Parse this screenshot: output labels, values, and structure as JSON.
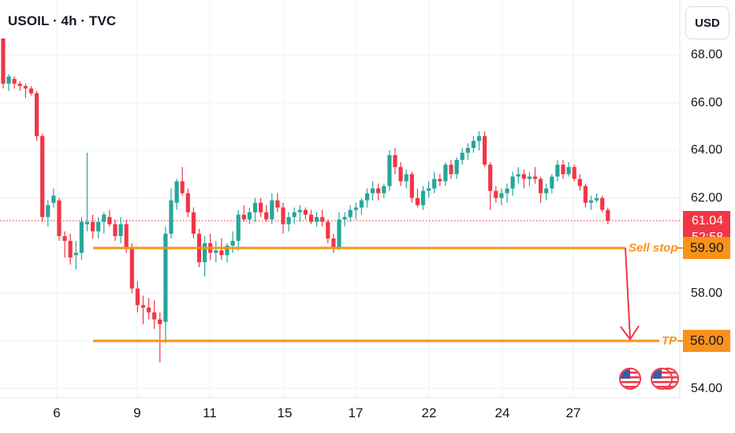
{
  "header": {
    "title": "USOIL · 4h · TVC",
    "currency": "USD"
  },
  "price_tag": {
    "price": "61.04",
    "countdown": "52:58"
  },
  "levels": [
    {
      "name": "Sell stop",
      "value": 59.9,
      "label": "59.90"
    },
    {
      "name": "TP",
      "value": 56.0,
      "label": "56.00"
    }
  ],
  "colors": {
    "up": "#26a69a",
    "down": "#f23645",
    "level": "#f7931a",
    "grid": "#eef0f3"
  },
  "icons": [
    "us-flag-icon",
    "us-flag-stack-icon"
  ],
  "chart_data": {
    "type": "candlestick",
    "title": "USOIL · 4h · TVC",
    "y_ticks": [
      "54.00",
      "56.00",
      "58.00",
      "62.00",
      "64.00",
      "66.00",
      "68.00"
    ],
    "x_ticks": [
      "6",
      "9",
      "11",
      "15",
      "17",
      "22",
      "24",
      "27"
    ],
    "ylim": [
      53.5,
      69.5
    ],
    "last_price": 61.04,
    "candles": [
      [
        68.7,
        68.7,
        66.6,
        66.8
      ],
      [
        66.8,
        67.2,
        66.5,
        67.1
      ],
      [
        67.0,
        67.1,
        66.6,
        66.8
      ],
      [
        66.8,
        66.9,
        66.5,
        66.7
      ],
      [
        66.7,
        66.8,
        66.2,
        66.6
      ],
      [
        66.6,
        66.7,
        66.3,
        66.4
      ],
      [
        66.4,
        66.5,
        64.4,
        64.6
      ],
      [
        64.6,
        64.7,
        61.0,
        61.2
      ],
      [
        61.2,
        61.9,
        60.8,
        61.7
      ],
      [
        61.8,
        62.4,
        61.6,
        62.1
      ],
      [
        61.9,
        62.0,
        60.2,
        60.4
      ],
      [
        60.4,
        60.6,
        59.5,
        60.2
      ],
      [
        60.2,
        60.5,
        59.2,
        59.5
      ],
      [
        59.6,
        60.2,
        59.0,
        59.7
      ],
      [
        59.7,
        61.2,
        59.4,
        61.0
      ],
      [
        60.9,
        63.9,
        60.6,
        61.0
      ],
      [
        61.0,
        61.3,
        60.3,
        60.6
      ],
      [
        60.6,
        61.2,
        60.3,
        61.0
      ],
      [
        61.0,
        61.4,
        60.5,
        61.3
      ],
      [
        61.2,
        61.5,
        60.8,
        60.9
      ],
      [
        60.9,
        61.1,
        60.2,
        60.4
      ],
      [
        60.4,
        61.2,
        60.1,
        60.9
      ],
      [
        60.9,
        61.1,
        59.7,
        59.9
      ],
      [
        59.9,
        60.1,
        58.0,
        58.2
      ],
      [
        58.2,
        58.5,
        57.2,
        57.5
      ],
      [
        57.5,
        57.9,
        56.7,
        57.4
      ],
      [
        57.4,
        57.8,
        56.9,
        57.2
      ],
      [
        57.2,
        57.7,
        56.5,
        56.9
      ],
      [
        56.9,
        57.2,
        55.1,
        56.7
      ],
      [
        56.8,
        60.8,
        55.9,
        60.5
      ],
      [
        60.5,
        62.4,
        60.3,
        61.9
      ],
      [
        61.8,
        62.8,
        61.5,
        62.7
      ],
      [
        62.7,
        63.3,
        62.1,
        62.2
      ],
      [
        62.2,
        62.4,
        61.2,
        61.4
      ],
      [
        61.4,
        61.6,
        60.3,
        60.5
      ],
      [
        60.5,
        60.7,
        59.1,
        59.3
      ],
      [
        59.3,
        60.4,
        58.7,
        60.1
      ],
      [
        60.1,
        60.5,
        59.4,
        59.7
      ],
      [
        59.7,
        60.2,
        59.3,
        59.8
      ],
      [
        59.8,
        60.3,
        59.4,
        59.6
      ],
      [
        59.6,
        60.1,
        59.3,
        60.0
      ],
      [
        60.0,
        60.6,
        59.7,
        60.2
      ],
      [
        60.2,
        61.5,
        59.8,
        61.3
      ],
      [
        61.3,
        61.7,
        61.0,
        61.1
      ],
      [
        61.1,
        61.6,
        60.9,
        61.4
      ],
      [
        61.4,
        62.0,
        61.0,
        61.8
      ],
      [
        61.8,
        62.0,
        61.2,
        61.4
      ],
      [
        61.4,
        61.7,
        61.0,
        61.1
      ],
      [
        61.1,
        62.2,
        60.9,
        61.9
      ],
      [
        61.9,
        62.2,
        61.4,
        61.6
      ],
      [
        61.6,
        61.8,
        60.5,
        60.9
      ],
      [
        60.9,
        61.4,
        60.6,
        61.2
      ],
      [
        61.2,
        61.6,
        60.9,
        61.4
      ],
      [
        61.4,
        61.7,
        61.0,
        61.5
      ],
      [
        61.5,
        61.6,
        61.1,
        61.3
      ],
      [
        61.3,
        61.5,
        60.9,
        61.0
      ],
      [
        61.0,
        61.4,
        60.8,
        61.2
      ],
      [
        61.2,
        61.5,
        60.8,
        61.0
      ],
      [
        61.0,
        61.1,
        60.1,
        60.3
      ],
      [
        60.3,
        60.5,
        59.7,
        59.9
      ],
      [
        59.9,
        61.4,
        59.8,
        61.1
      ],
      [
        61.1,
        61.4,
        60.8,
        61.2
      ],
      [
        61.2,
        61.7,
        61.0,
        61.5
      ],
      [
        61.5,
        61.8,
        61.1,
        61.6
      ],
      [
        61.6,
        62.0,
        61.3,
        61.9
      ],
      [
        61.9,
        62.4,
        61.6,
        62.2
      ],
      [
        62.2,
        62.7,
        61.9,
        62.4
      ],
      [
        62.4,
        62.6,
        61.9,
        62.2
      ],
      [
        62.2,
        62.6,
        62.0,
        62.5
      ],
      [
        62.5,
        64.0,
        62.3,
        63.8
      ],
      [
        63.8,
        64.1,
        63.0,
        63.3
      ],
      [
        63.3,
        63.5,
        62.5,
        62.7
      ],
      [
        62.7,
        63.2,
        62.4,
        63.0
      ],
      [
        63.0,
        63.1,
        61.8,
        62.0
      ],
      [
        62.0,
        62.4,
        61.6,
        61.7
      ],
      [
        61.7,
        62.5,
        61.5,
        62.3
      ],
      [
        62.3,
        62.7,
        62.0,
        62.4
      ],
      [
        62.4,
        63.1,
        62.2,
        62.8
      ],
      [
        62.8,
        63.0,
        62.5,
        62.7
      ],
      [
        62.7,
        63.5,
        62.5,
        63.4
      ],
      [
        63.4,
        63.6,
        62.8,
        63.0
      ],
      [
        63.0,
        63.7,
        62.8,
        63.6
      ],
      [
        63.6,
        64.1,
        63.4,
        63.9
      ],
      [
        63.9,
        64.3,
        63.6,
        64.1
      ],
      [
        64.1,
        64.6,
        63.9,
        64.4
      ],
      [
        64.4,
        64.8,
        64.0,
        64.6
      ],
      [
        64.6,
        64.8,
        63.3,
        63.4
      ],
      [
        63.4,
        63.5,
        61.5,
        62.3
      ],
      [
        62.3,
        62.5,
        61.8,
        62.0
      ],
      [
        62.0,
        62.4,
        61.7,
        62.2
      ],
      [
        62.2,
        62.6,
        61.8,
        62.4
      ],
      [
        62.4,
        63.1,
        62.1,
        62.9
      ],
      [
        62.9,
        63.3,
        62.6,
        63.0
      ],
      [
        63.0,
        63.2,
        62.4,
        62.8
      ],
      [
        62.8,
        63.1,
        62.5,
        62.9
      ],
      [
        62.9,
        63.3,
        62.6,
        62.8
      ],
      [
        62.8,
        62.9,
        61.8,
        62.2
      ],
      [
        62.2,
        62.6,
        61.9,
        62.4
      ],
      [
        62.4,
        63.0,
        62.2,
        62.9
      ],
      [
        62.9,
        63.6,
        62.7,
        63.4
      ],
      [
        63.4,
        63.6,
        62.8,
        63.0
      ],
      [
        63.0,
        63.5,
        62.9,
        63.3
      ],
      [
        63.3,
        63.4,
        62.7,
        62.8
      ],
      [
        62.8,
        63.0,
        62.3,
        62.5
      ],
      [
        62.5,
        62.6,
        61.6,
        61.8
      ],
      [
        61.8,
        62.1,
        61.5,
        61.9
      ],
      [
        61.9,
        62.2,
        61.8,
        62.0
      ],
      [
        62.0,
        62.1,
        61.4,
        61.5
      ],
      [
        61.5,
        61.6,
        60.9,
        61.04
      ]
    ]
  }
}
